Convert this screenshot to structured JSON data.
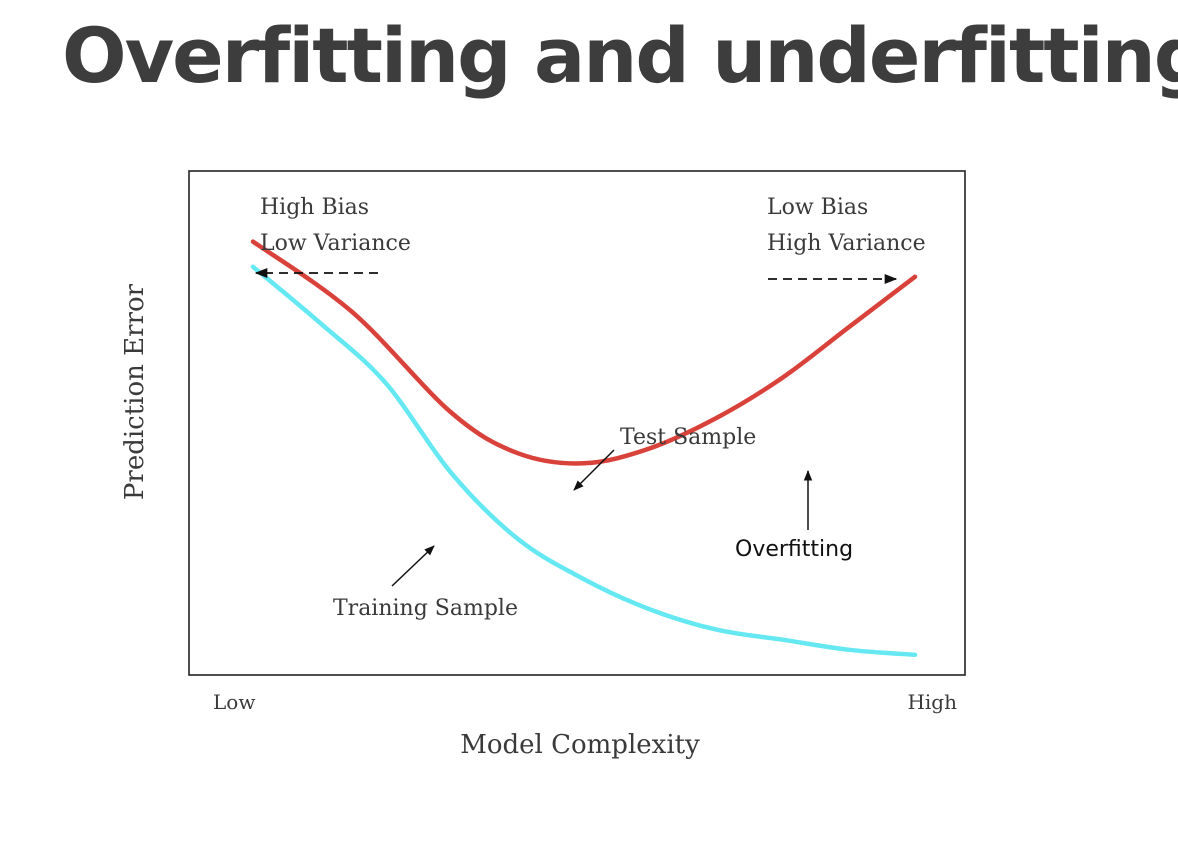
{
  "slide": {
    "title": "Overfitting and underfitting"
  },
  "chart_data": {
    "type": "line",
    "xlabel": "Model Complexity",
    "ylabel": "Prediction Error",
    "x_tick_labels": [
      "Low",
      "High"
    ],
    "grid": false,
    "legend": "none",
    "annotations": {
      "left_regime": [
        "High Bias",
        "Low Variance"
      ],
      "right_regime": [
        "Low Bias",
        "High Variance"
      ],
      "test_label": "Test Sample",
      "training_label": "Training Sample",
      "overfitting_label": "Overfitting"
    },
    "series": [
      {
        "name": "Test Sample",
        "color": "#d9423a",
        "x": [
          0.0,
          0.15,
          0.3,
          0.4,
          0.5,
          0.6,
          0.7,
          0.8,
          0.9,
          1.0
        ],
        "y": [
          0.86,
          0.72,
          0.52,
          0.44,
          0.42,
          0.45,
          0.51,
          0.59,
          0.69,
          0.79
        ]
      },
      {
        "name": "Training Sample",
        "color": "#66e8f2",
        "x": [
          0.0,
          0.1,
          0.2,
          0.3,
          0.4,
          0.5,
          0.6,
          0.7,
          0.8,
          0.9,
          1.0
        ],
        "y": [
          0.81,
          0.7,
          0.58,
          0.4,
          0.27,
          0.19,
          0.13,
          0.09,
          0.07,
          0.05,
          0.04
        ]
      }
    ]
  }
}
